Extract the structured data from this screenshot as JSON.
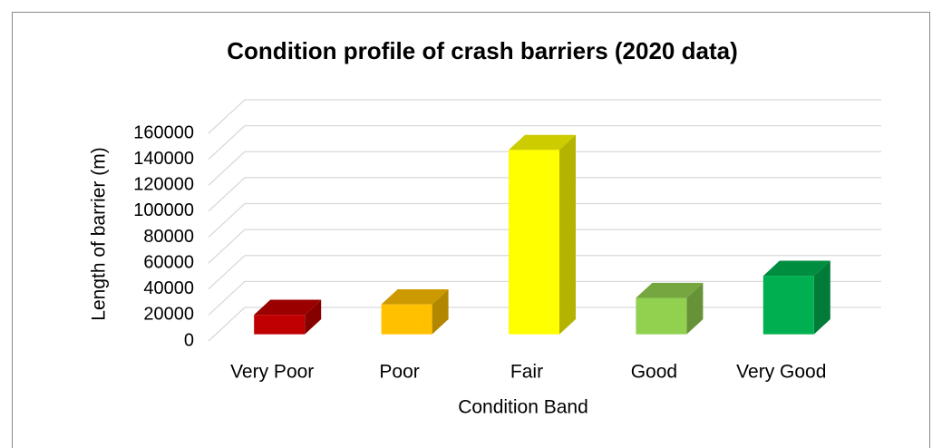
{
  "chart_data": {
    "type": "bar3d",
    "title": "Condition profile of crash barriers (2020 data)",
    "x_label": "Condition Band",
    "y_label": "Length of barrier (m)",
    "categories": [
      "Very Poor",
      "Poor",
      "Fair",
      "Good",
      "Very Good"
    ],
    "values": [
      15000,
      23000,
      142000,
      28000,
      45000
    ],
    "colors": [
      "#c00000",
      "#ffc000",
      "#ffff00",
      "#92d050",
      "#00b050"
    ],
    "ylim": [
      0,
      160000
    ],
    "yticks": [
      0,
      20000,
      40000,
      60000,
      80000,
      100000,
      120000,
      140000,
      160000
    ],
    "grid": true
  }
}
